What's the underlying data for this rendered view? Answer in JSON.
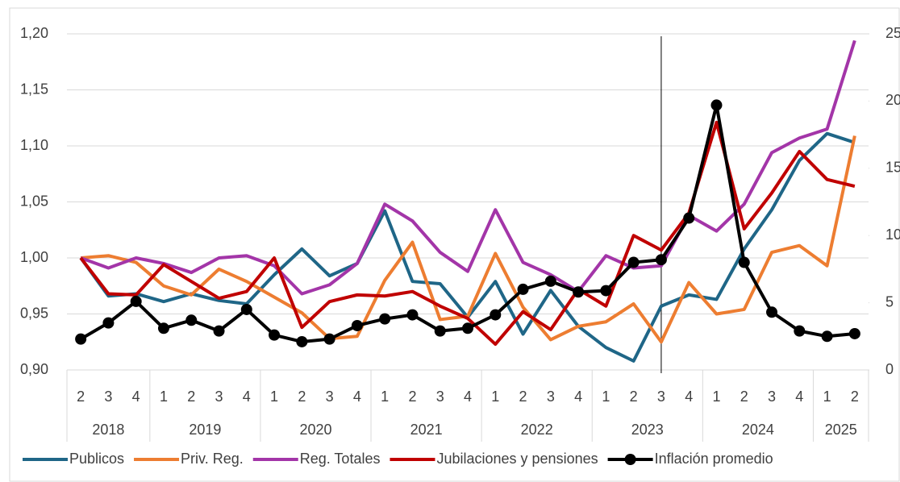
{
  "chart_data": {
    "type": "line",
    "categories": [
      "2",
      "3",
      "4",
      "1",
      "2",
      "3",
      "4",
      "1",
      "2",
      "3",
      "4",
      "1",
      "2",
      "3",
      "4",
      "1",
      "2",
      "3",
      "4",
      "1",
      "2",
      "3",
      "4",
      "1",
      "2",
      "3",
      "4",
      "1",
      "2"
    ],
    "category_groups": [
      {
        "label": "2018",
        "size": 3
      },
      {
        "label": "2019",
        "size": 4
      },
      {
        "label": "2020",
        "size": 4
      },
      {
        "label": "2021",
        "size": 4
      },
      {
        "label": "2022",
        "size": 4
      },
      {
        "label": "2023",
        "size": 4
      },
      {
        "label": "2024",
        "size": 4
      },
      {
        "label": "2025",
        "size": 2
      }
    ],
    "vline": {
      "category_index": 21,
      "color": "#000000"
    },
    "ylim": [
      0.9,
      1.2
    ],
    "yticks": [
      {
        "value": 0.9,
        "label": "0,90"
      },
      {
        "value": 0.95,
        "label": "0,95"
      },
      {
        "value": 1.0,
        "label": "1,00"
      },
      {
        "value": 1.05,
        "label": "1,05"
      },
      {
        "value": 1.1,
        "label": "1,10"
      },
      {
        "value": 1.15,
        "label": "1,15"
      },
      {
        "value": 1.2,
        "label": "1,20"
      }
    ],
    "y2lim": [
      0,
      25
    ],
    "y2ticks": [
      0,
      5,
      10,
      15,
      20,
      25
    ],
    "grid": true,
    "legend": "bottom",
    "series": [
      {
        "name": "Publicos",
        "color": "#1f6687",
        "values": [
          1.0,
          0.966,
          0.968,
          0.961,
          0.968,
          0.962,
          0.959,
          0.985,
          1.008,
          0.984,
          0.995,
          1.042,
          0.979,
          0.977,
          0.947,
          0.979,
          0.932,
          0.971,
          0.939,
          0.92,
          0.908,
          0.957,
          0.967,
          0.963,
          1.008,
          1.043,
          1.087,
          1.111,
          1.103
        ]
      },
      {
        "name": "Priv. Reg.",
        "color": "#ed7d31",
        "values": [
          1.0,
          1.002,
          0.996,
          0.975,
          0.967,
          0.99,
          0.979,
          0.965,
          0.951,
          0.928,
          0.93,
          0.98,
          1.014,
          0.945,
          0.948,
          1.004,
          0.956,
          0.927,
          0.939,
          0.943,
          0.959,
          0.925,
          0.978,
          0.95,
          0.954,
          1.005,
          1.011,
          0.993,
          1.109
        ]
      },
      {
        "name": "Reg. Totales",
        "color": "#a335a8",
        "values": [
          1.0,
          0.991,
          1.0,
          0.995,
          0.987,
          1.0,
          1.002,
          0.993,
          0.968,
          0.976,
          0.995,
          1.048,
          1.033,
          1.005,
          0.988,
          1.043,
          0.996,
          0.985,
          0.97,
          1.002,
          0.991,
          0.993,
          1.038,
          1.024,
          1.048,
          1.094,
          1.107,
          1.115,
          1.194
        ]
      },
      {
        "name": "Jubilaciones y pensiones",
        "color": "#c00000",
        "values": [
          1.0,
          0.968,
          0.967,
          0.994,
          0.979,
          0.964,
          0.97,
          1.0,
          0.938,
          0.961,
          0.967,
          0.966,
          0.97,
          0.957,
          0.946,
          0.923,
          0.952,
          0.936,
          0.972,
          0.957,
          1.02,
          1.007,
          1.04,
          1.121,
          1.026,
          1.058,
          1.095,
          1.07,
          1.064
        ]
      },
      {
        "name": "Inflación promedio",
        "color": "#000000",
        "axis": "y2",
        "markers": true,
        "values": [
          2.3,
          3.5,
          5.1,
          3.1,
          3.7,
          2.9,
          4.5,
          2.6,
          2.1,
          2.3,
          3.3,
          3.8,
          4.1,
          2.9,
          3.1,
          4.1,
          6.0,
          6.6,
          5.8,
          5.9,
          8.0,
          8.2,
          11.3,
          19.7,
          8.0,
          4.3,
          2.9,
          2.5,
          2.7
        ]
      }
    ]
  }
}
